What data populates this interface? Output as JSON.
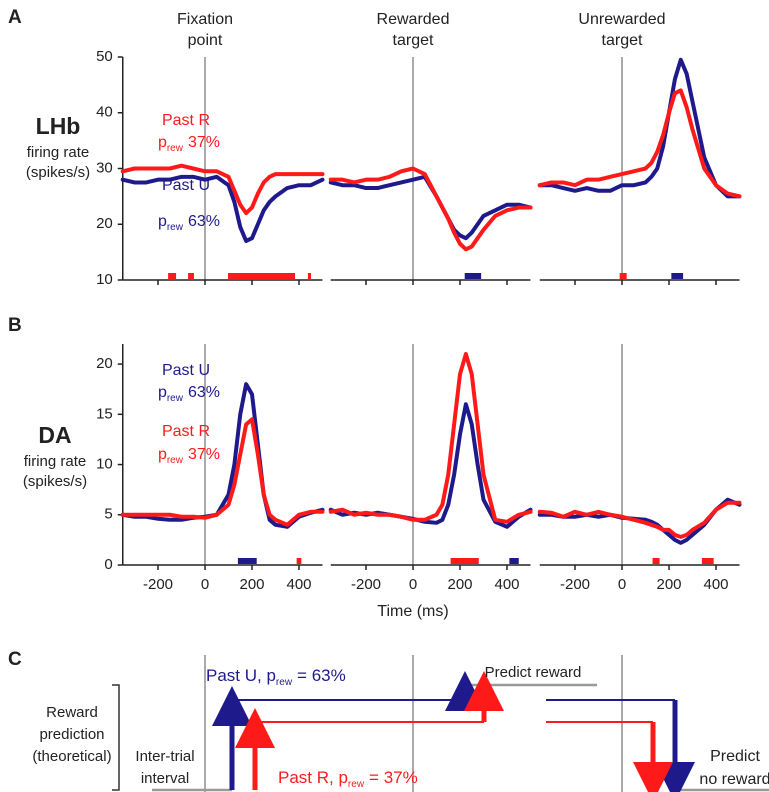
{
  "panels": [
    "A",
    "B",
    "C"
  ],
  "rows": [
    {
      "label": "LHb",
      "sublabel": [
        "firing rate",
        "(spikes/s)"
      ]
    },
    {
      "label": "DA",
      "sublabel": [
        "firing rate",
        "(spikes/s)"
      ]
    }
  ],
  "chart_data": [
    {
      "type": "line",
      "title": [
        "Fixation",
        "point"
      ],
      "x": [
        -350,
        -300,
        -250,
        -200,
        -150,
        -100,
        -50,
        0,
        50,
        100,
        125,
        150,
        175,
        200,
        225,
        250,
        275,
        300,
        350,
        400,
        450,
        500
      ],
      "xlim": [
        -350,
        500
      ],
      "xticks": [
        -200,
        0,
        200,
        400
      ],
      "ylim": [
        10,
        50
      ],
      "yticks": [
        10,
        20,
        30,
        40,
        50
      ],
      "marker_x": 0,
      "series": [
        {
          "name": "Past R",
          "prob": {
            "prefix": "p",
            "sub": "rew",
            "suffix": "37%"
          },
          "color": "#ff1a1a",
          "values": [
            29.5,
            30,
            30,
            30,
            30,
            30.5,
            30,
            29.5,
            29.5,
            28.5,
            26,
            23.5,
            22,
            23,
            25.5,
            27.5,
            28.5,
            29,
            29,
            29,
            29,
            29
          ]
        },
        {
          "name": "Past U",
          "prob": {
            "prefix": "p",
            "sub": "rew",
            "suffix": "63%"
          },
          "color": "#1f1a8c",
          "values": [
            28,
            27.5,
            27.5,
            28,
            28,
            28.5,
            28.5,
            28,
            28.5,
            27,
            24,
            19.5,
            17,
            17.5,
            20,
            22.5,
            24,
            25,
            26.5,
            27,
            27,
            28
          ]
        }
      ],
      "sig_bars": [
        {
          "series": 0,
          "x": [
            -157,
            -123
          ]
        },
        {
          "series": 0,
          "x": [
            -72,
            -47
          ]
        },
        {
          "series": 0,
          "x": [
            98,
            383
          ]
        },
        {
          "series": 0,
          "x": [
            438,
            451
          ]
        }
      ]
    },
    {
      "type": "line",
      "title": [
        "Rewarded",
        "target"
      ],
      "x": [
        -350,
        -300,
        -250,
        -200,
        -150,
        -100,
        -50,
        0,
        50,
        100,
        125,
        150,
        175,
        200,
        225,
        250,
        275,
        300,
        350,
        400,
        450,
        500
      ],
      "xlim": [
        -350,
        500
      ],
      "xticks": [
        -200,
        0,
        200,
        400
      ],
      "ylim": [
        10,
        50
      ],
      "marker_x": 0,
      "series": [
        {
          "color": "#ff1a1a",
          "values": [
            28,
            28,
            27.5,
            28,
            28,
            28.5,
            29.5,
            30,
            29,
            25,
            23,
            21,
            18.5,
            16.5,
            15.5,
            16,
            17.5,
            19,
            21.5,
            22.5,
            23,
            23
          ]
        },
        {
          "color": "#1f1a8c",
          "values": [
            27.5,
            27,
            27,
            26.5,
            26.5,
            27,
            27.5,
            28,
            28.5,
            25,
            23,
            21,
            19,
            18,
            17.5,
            18.5,
            20,
            21.5,
            22.5,
            23.5,
            23.5,
            23
          ]
        }
      ],
      "sig_bars": [
        {
          "series": 1,
          "x": [
            220,
            290
          ]
        }
      ]
    },
    {
      "type": "line",
      "title": [
        "Unrewarded",
        "target"
      ],
      "x": [
        -350,
        -300,
        -250,
        -200,
        -150,
        -100,
        -50,
        0,
        50,
        100,
        125,
        150,
        175,
        200,
        225,
        250,
        275,
        300,
        350,
        400,
        450,
        500
      ],
      "xlim": [
        -350,
        500
      ],
      "xticks": [
        -200,
        0,
        200,
        400
      ],
      "ylim": [
        10,
        50
      ],
      "marker_x": 0,
      "series": [
        {
          "color": "#ff1a1a",
          "values": [
            27,
            27.5,
            27.5,
            27,
            28,
            28,
            28.5,
            29,
            29.5,
            30,
            31,
            33,
            36,
            40,
            43.5,
            44,
            41,
            37,
            30,
            27,
            25.5,
            25
          ]
        },
        {
          "color": "#1f1a8c",
          "values": [
            27,
            27,
            26.5,
            26,
            26.5,
            26,
            26,
            27,
            27,
            27.5,
            28.5,
            30,
            34,
            40,
            46,
            49.5,
            47,
            42,
            32,
            27,
            25,
            25
          ]
        }
      ],
      "sig_bars": [
        {
          "series": 0,
          "x": [
            -10,
            20
          ]
        },
        {
          "series": 1,
          "x": [
            210,
            260
          ]
        }
      ]
    },
    {
      "type": "line",
      "x": [
        -350,
        -300,
        -250,
        -200,
        -150,
        -100,
        -50,
        0,
        50,
        100,
        125,
        150,
        175,
        200,
        225,
        250,
        275,
        300,
        350,
        400,
        450,
        500
      ],
      "xlim": [
        -350,
        500
      ],
      "xticks": [
        -200,
        0,
        200,
        400
      ],
      "ylim": [
        0,
        22
      ],
      "yticks": [
        0,
        5,
        10,
        15,
        20
      ],
      "marker_x": 0,
      "series": [
        {
          "name": "Past R",
          "prob": {
            "prefix": "p",
            "sub": "rew",
            "suffix": "37%"
          },
          "color": "#ff1a1a",
          "values": [
            5,
            5,
            5,
            5,
            5,
            4.8,
            4.8,
            4.7,
            5,
            6,
            8,
            11,
            14,
            14.5,
            11,
            7,
            5,
            4.5,
            4,
            5,
            5.3,
            5.3
          ]
        },
        {
          "name": "Past U",
          "prob": {
            "prefix": "p",
            "sub": "rew",
            "suffix": "63%"
          },
          "color": "#1f1a8c",
          "values": [
            5,
            4.8,
            4.8,
            4.6,
            4.5,
            4.5,
            4.7,
            4.8,
            5,
            7,
            10,
            15,
            18,
            17,
            12,
            7,
            4.5,
            4,
            3.8,
            4.8,
            5.2,
            5.5
          ]
        }
      ],
      "sig_bars": [
        {
          "series": 1,
          "x": [
            140,
            220
          ]
        },
        {
          "series": 0,
          "x": [
            390,
            410
          ]
        }
      ]
    },
    {
      "type": "line",
      "x": [
        -350,
        -300,
        -250,
        -200,
        -150,
        -100,
        -50,
        0,
        50,
        100,
        125,
        150,
        175,
        200,
        225,
        250,
        275,
        300,
        350,
        400,
        450,
        500
      ],
      "xlim": [
        -350,
        500
      ],
      "xticks": [
        -200,
        0,
        200,
        400
      ],
      "ylim": [
        0,
        22
      ],
      "marker_x": 0,
      "xlabel": "Time (ms)",
      "series": [
        {
          "color": "#ff1a1a",
          "values": [
            5.3,
            5.5,
            5,
            5.2,
            5,
            5,
            4.8,
            4.5,
            4.5,
            5,
            6,
            9,
            14,
            19,
            21,
            19,
            14,
            9,
            4.5,
            4.3,
            5,
            5.3
          ]
        },
        {
          "color": "#1f1a8c",
          "values": [
            5.5,
            5,
            5.2,
            5,
            5.2,
            5,
            4.8,
            4.6,
            4.3,
            4.2,
            4.5,
            6,
            9,
            13,
            16,
            14,
            10,
            6.5,
            4.3,
            3.8,
            4.8,
            5.5
          ]
        }
      ],
      "sig_bars": [
        {
          "series": 0,
          "x": [
            160,
            280
          ]
        },
        {
          "series": 1,
          "x": [
            410,
            450
          ]
        }
      ]
    },
    {
      "type": "line",
      "x": [
        -350,
        -300,
        -250,
        -200,
        -150,
        -100,
        -50,
        0,
        50,
        100,
        125,
        150,
        175,
        200,
        225,
        250,
        275,
        300,
        350,
        400,
        450,
        500
      ],
      "xlim": [
        -350,
        500
      ],
      "xticks": [
        -200,
        0,
        200,
        400
      ],
      "ylim": [
        0,
        22
      ],
      "marker_x": 0,
      "series": [
        {
          "color": "#ff1a1a",
          "values": [
            5.3,
            5.2,
            4.8,
            5.3,
            5,
            5.3,
            5,
            4.8,
            4.5,
            4.2,
            4,
            3.8,
            3.5,
            3.5,
            3,
            2.8,
            3,
            3.5,
            4.2,
            5.5,
            6.2,
            6.2
          ]
        },
        {
          "color": "#1f1a8c",
          "values": [
            5,
            5,
            4.8,
            4.8,
            5,
            4.8,
            5,
            4.7,
            4.6,
            4.5,
            4.3,
            4,
            3.5,
            3,
            2.5,
            2.2,
            2.5,
            3,
            4,
            5.5,
            6.5,
            6
          ]
        }
      ],
      "sig_bars": [
        {
          "series": 0,
          "x": [
            130,
            160
          ]
        },
        {
          "series": 0,
          "x": [
            340,
            390
          ]
        }
      ]
    }
  ],
  "diagram": {
    "y_label": [
      "Reward",
      "prediction",
      "(theoretical)"
    ],
    "iti": [
      "Inter-trial",
      "interval"
    ],
    "past_u": {
      "prefix": "Past U, p",
      "sub": "rew",
      "suffix": "= 63%"
    },
    "past_r": {
      "prefix": "Past R, p",
      "sub": "rew",
      "suffix": "= 37%"
    },
    "predict_reward": "Predict reward",
    "predict_none": [
      "Predict",
      "no reward"
    ]
  }
}
